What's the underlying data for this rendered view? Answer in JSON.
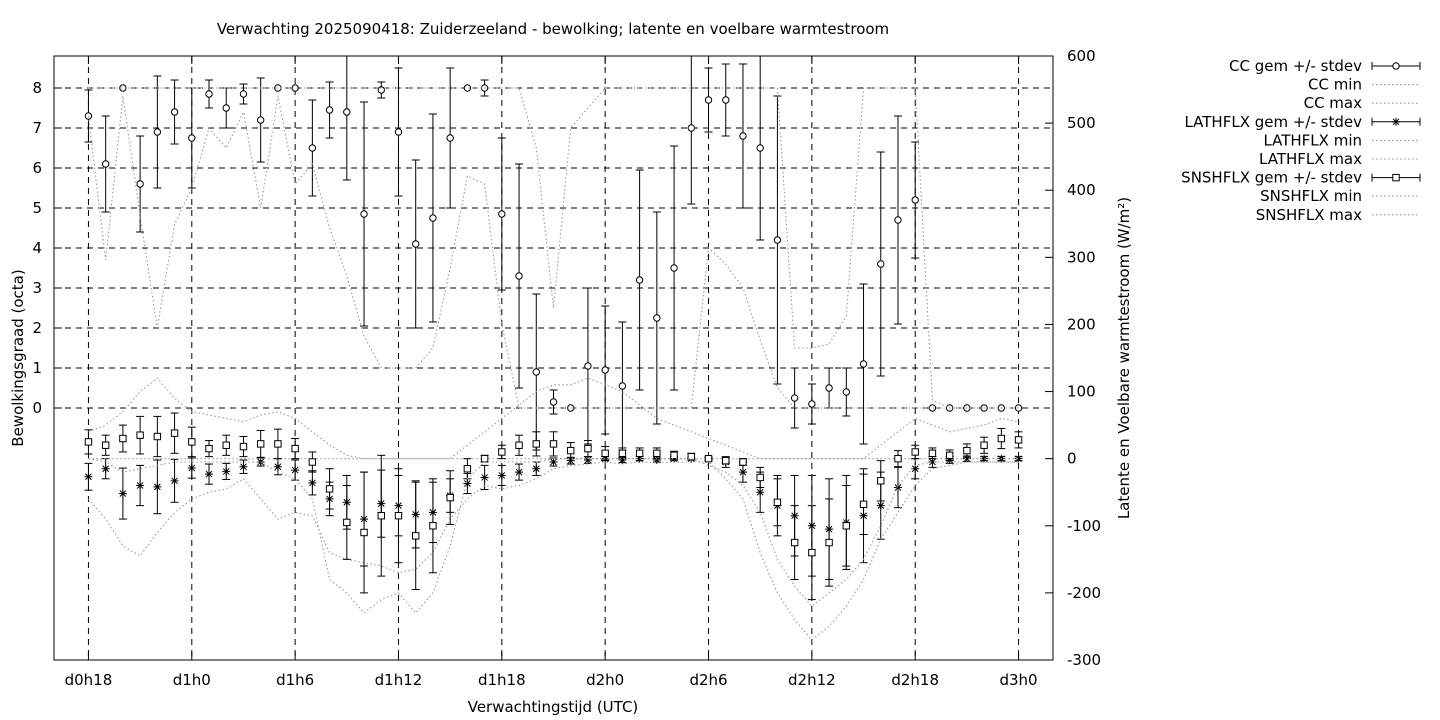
{
  "chart_data": {
    "type": "line",
    "title": "Verwachting 2025090418: Zuiderzeeland - bewolking; latente en voelbare warmtestroom",
    "xlabel": "Verwachtingstijd (UTC)",
    "ylabel": "Bewolkingsgraad (octa)",
    "y2label": "Latente en Voelbare warmtestroom (W/m²)",
    "x_unit": "hours from d0h0",
    "xlim": [
      16,
      74
    ],
    "ylim": [
      -6.3,
      8.8
    ],
    "y2lim": [
      -300,
      600
    ],
    "x_ticks": [
      {
        "x": 18,
        "label": "d0h18"
      },
      {
        "x": 24,
        "label": "d1h0"
      },
      {
        "x": 30,
        "label": "d1h6"
      },
      {
        "x": 36,
        "label": "d1h12"
      },
      {
        "x": 42,
        "label": "d1h18"
      },
      {
        "x": 48,
        "label": "d2h0"
      },
      {
        "x": 54,
        "label": "d2h6"
      },
      {
        "x": 60,
        "label": "d2h12"
      },
      {
        "x": 66,
        "label": "d2h18"
      },
      {
        "x": 72,
        "label": "d3h0"
      }
    ],
    "y_ticks": [
      0,
      1,
      2,
      3,
      4,
      5,
      6,
      7,
      8
    ],
    "y2_ticks": [
      -300,
      -200,
      -100,
      0,
      100,
      200,
      300,
      400,
      500,
      600
    ],
    "grid": true,
    "legend_position": "outside-top-right",
    "legend": [
      "CC gem +/- stdev",
      "CC min",
      "CC max",
      "LATHFLX gem +/- stdev",
      "LATHFLX min",
      "LATHFLX max",
      "SNSHFLX gem +/- stdev",
      "SNSHFLX min",
      "SNSHFLX max"
    ],
    "x": [
      18,
      19,
      20,
      21,
      22,
      23,
      24,
      25,
      26,
      27,
      28,
      29,
      30,
      31,
      32,
      33,
      34,
      35,
      36,
      37,
      38,
      39,
      40,
      41,
      42,
      43,
      44,
      45,
      46,
      47,
      48,
      49,
      50,
      51,
      52,
      53,
      54,
      55,
      56,
      57,
      58,
      59,
      60,
      61,
      62,
      63,
      64,
      65,
      66,
      67,
      68,
      69,
      70,
      71,
      72
    ],
    "series": [
      {
        "name": "CC gem +/- stdev",
        "axis": "y1",
        "marker": "circle",
        "mean": [
          7.3,
          6.1,
          8.0,
          5.6,
          6.9,
          7.4,
          6.75,
          7.85,
          7.5,
          7.85,
          7.2,
          8.0,
          8.0,
          6.5,
          7.45,
          7.4,
          4.85,
          7.95,
          6.9,
          4.1,
          4.75,
          6.75,
          8.0,
          8.0,
          4.85,
          3.3,
          0.9,
          0.15,
          0.0,
          1.05,
          0.95,
          0.55,
          3.2,
          2.25,
          3.5,
          7.0,
          7.7,
          7.7,
          6.8,
          6.5,
          4.2,
          0.25,
          0.1,
          0.5,
          0.4,
          1.1,
          3.6,
          4.7,
          5.2,
          0.0,
          0.0,
          0.0,
          0.0,
          0.0,
          0.0
        ],
        "std": [
          0.65,
          1.2,
          0.0,
          1.2,
          1.4,
          0.8,
          1.25,
          0.35,
          0.5,
          0.25,
          1.05,
          0.0,
          0.0,
          1.2,
          0.7,
          1.7,
          2.8,
          0.2,
          1.6,
          2.1,
          2.6,
          1.75,
          0.0,
          0.2,
          1.9,
          2.8,
          1.95,
          0.3,
          0.0,
          1.95,
          1.6,
          1.6,
          2.75,
          2.65,
          3.05,
          1.9,
          0.8,
          0.9,
          1.8,
          2.3,
          3.6,
          0.75,
          0.5,
          0.5,
          0.6,
          2.0,
          2.8,
          2.6,
          1.45,
          0.0,
          0.0,
          0.0,
          0.0,
          0.0,
          0.0
        ]
      },
      {
        "name": "CC min",
        "axis": "y1",
        "style": "dotted",
        "values": [
          7.3,
          3.7,
          7.8,
          4.8,
          2.0,
          4.6,
          5.5,
          7.0,
          6.5,
          7.4,
          5.0,
          7.8,
          5.6,
          6.1,
          4.5,
          3.3,
          1.8,
          1.0,
          1.0,
          1.0,
          1.5,
          3.5,
          5.8,
          5.6,
          2.1,
          0.0,
          0.0,
          0.0,
          0.0,
          0.0,
          0.0,
          0.0,
          0.0,
          0.0,
          0.0,
          0.0,
          4.0,
          3.6,
          3.0,
          1.7,
          0.5,
          0.0,
          0.0,
          0.0,
          0.0,
          0.0,
          0.0,
          0.0,
          0.0,
          0.0,
          0.0,
          0.0,
          0.0,
          0.0,
          0.0
        ]
      },
      {
        "name": "CC max",
        "axis": "y1",
        "style": "dotted",
        "values": [
          8.0,
          8.0,
          8.0,
          8.0,
          8.0,
          8.0,
          8.0,
          8.0,
          8.0,
          8.0,
          8.0,
          8.0,
          8.0,
          8.0,
          8.0,
          8.0,
          8.0,
          8.0,
          8.0,
          8.0,
          8.0,
          8.0,
          8.0,
          8.0,
          8.0,
          8.0,
          6.5,
          2.5,
          7.0,
          7.5,
          8.0,
          8.0,
          8.0,
          8.0,
          8.0,
          8.0,
          8.0,
          8.0,
          8.0,
          8.0,
          8.0,
          1.5,
          1.5,
          1.6,
          2.3,
          8.0,
          8.0,
          8.0,
          8.0,
          0.2,
          0.0,
          0.0,
          0.0,
          0.0,
          0.0
        ]
      },
      {
        "name": "LATHFLX gem +/- stdev",
        "axis": "y2",
        "marker": "star",
        "mean": [
          -27,
          -15,
          -52,
          -40,
          -42,
          -33,
          -14,
          -23,
          -19,
          -12,
          -5,
          -12,
          -17,
          -36,
          -60,
          -65,
          -90,
          -67,
          -70,
          -83,
          -80,
          -55,
          -37,
          -28,
          -25,
          -20,
          -15,
          -5,
          -3,
          -2,
          0,
          -2,
          0,
          -2,
          0,
          0,
          0,
          -5,
          -20,
          -50,
          -70,
          -85,
          -100,
          -105,
          -95,
          -85,
          -70,
          -43,
          -15,
          -5,
          -2,
          0,
          0,
          0,
          0
        ],
        "std": [
          20,
          15,
          38,
          30,
          40,
          32,
          15,
          15,
          12,
          10,
          6,
          12,
          15,
          18,
          25,
          40,
          70,
          50,
          45,
          50,
          45,
          25,
          15,
          18,
          15,
          12,
          10,
          6,
          5,
          5,
          3,
          4,
          3,
          3,
          3,
          2,
          2,
          8,
          15,
          30,
          45,
          60,
          75,
          75,
          70,
          70,
          50,
          30,
          15,
          8,
          5,
          4,
          3,
          3,
          3
        ]
      },
      {
        "name": "LATHFLX min",
        "axis": "y2",
        "style": "dotted",
        "values": [
          -60,
          -90,
          -130,
          -145,
          -110,
          -80,
          -60,
          -50,
          -45,
          -30,
          -60,
          -90,
          -80,
          -85,
          -140,
          -150,
          -155,
          -160,
          -170,
          -165,
          -140,
          -90,
          -60,
          -40,
          -45,
          -40,
          -30,
          -15,
          -10,
          -8,
          -5,
          -8,
          -5,
          -6,
          -5,
          -5,
          -5,
          -30,
          -60,
          -140,
          -200,
          -240,
          -270,
          -250,
          -220,
          -180,
          -120,
          -80,
          -40,
          -15,
          -10,
          -5,
          -5,
          -5,
          -5
        ],
        "values_note": ""
      },
      {
        "name": "LATHFLX max",
        "axis": "y2",
        "style": "dotted",
        "values": [
          0,
          0,
          0,
          0,
          0,
          0,
          0,
          0,
          0,
          0,
          0,
          0,
          0,
          0,
          0,
          0,
          0,
          0,
          0,
          0,
          0,
          0,
          0,
          0,
          0,
          0,
          0,
          0,
          0,
          0,
          0,
          0,
          0,
          0,
          0,
          0,
          0,
          0,
          0,
          0,
          0,
          0,
          0,
          0,
          0,
          0,
          0,
          0,
          0,
          0,
          0,
          0,
          0,
          0,
          0
        ]
      },
      {
        "name": "SNSHFLX gem +/- stdev",
        "axis": "y2",
        "marker": "square",
        "mean": [
          25,
          20,
          30,
          35,
          33,
          38,
          25,
          15,
          20,
          18,
          22,
          22,
          15,
          -5,
          -45,
          -95,
          -110,
          -85,
          -85,
          -115,
          -100,
          -58,
          -15,
          0,
          10,
          20,
          22,
          22,
          12,
          15,
          8,
          8,
          8,
          8,
          5,
          3,
          0,
          -3,
          -5,
          -28,
          -65,
          -125,
          -140,
          -125,
          -100,
          -68,
          -33,
          0,
          10,
          8,
          5,
          12,
          20,
          30,
          28
        ],
        "std": [
          18,
          15,
          20,
          28,
          30,
          30,
          22,
          12,
          15,
          15,
          20,
          22,
          15,
          15,
          30,
          55,
          90,
          90,
          70,
          80,
          70,
          40,
          15,
          5,
          10,
          15,
          18,
          18,
          12,
          12,
          10,
          8,
          8,
          8,
          6,
          5,
          3,
          4,
          5,
          15,
          35,
          55,
          70,
          65,
          60,
          45,
          30,
          12,
          10,
          8,
          8,
          10,
          12,
          15,
          12
        ]
      },
      {
        "name": "SNSHFLX min",
        "axis": "y2",
        "style": "dotted",
        "values": [
          0,
          -5,
          -20,
          -15,
          -10,
          -5,
          -5,
          -5,
          -5,
          -5,
          -5,
          -20,
          -30,
          -60,
          -180,
          -200,
          -230,
          -210,
          -200,
          -230,
          -200,
          -130,
          -30,
          -5,
          -5,
          -5,
          -5,
          0,
          0,
          0,
          0,
          0,
          0,
          0,
          0,
          0,
          -10,
          -20,
          -40,
          -80,
          -150,
          -190,
          -220,
          -200,
          -180,
          -150,
          -100,
          -40,
          -10,
          -5,
          -5,
          -5,
          -5,
          -5,
          -5
        ]
      },
      {
        "name": "SNSHFLX max",
        "axis": "y2",
        "style": "dotted",
        "values": [
          40,
          50,
          70,
          100,
          120,
          90,
          70,
          65,
          60,
          55,
          65,
          70,
          60,
          40,
          20,
          5,
          0,
          0,
          0,
          0,
          0,
          0,
          20,
          40,
          60,
          80,
          100,
          110,
          110,
          120,
          110,
          100,
          80,
          60,
          50,
          40,
          30,
          20,
          10,
          0,
          0,
          0,
          0,
          0,
          0,
          0,
          20,
          40,
          60,
          50,
          40,
          45,
          50,
          60,
          55
        ]
      }
    ]
  }
}
